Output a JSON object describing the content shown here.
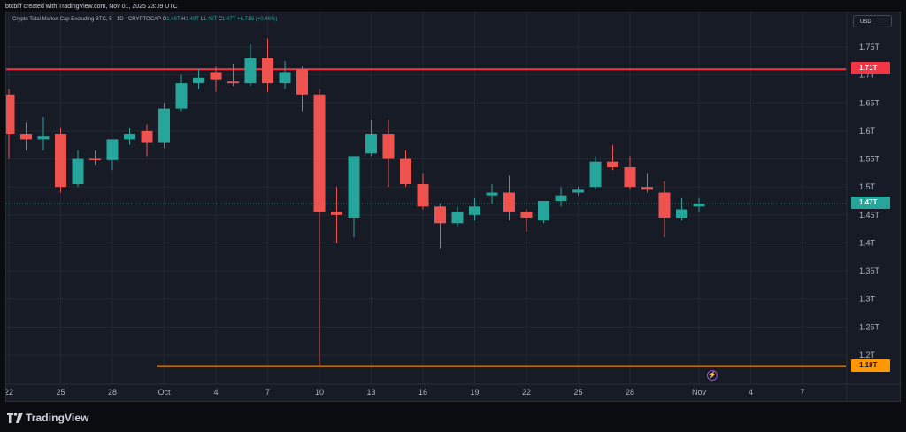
{
  "header": {
    "caption": "btcbiff created with TradingView.com, Nov 01, 2025 23:09 UTC"
  },
  "legend": {
    "title": "Crypto Total Market Cap Excluding BTC, 5 · 1D · CRYPTOCAP",
    "open_label": "O",
    "open": "1.46T",
    "high_label": "H",
    "high": "1.48T",
    "low_label": "L",
    "low": "1.45T",
    "close_label": "C",
    "close": "1.47T",
    "change": "+6.71B (+0.46%)"
  },
  "currency_button": "USD",
  "colors": {
    "up": "#26a69a",
    "down": "#ef5350",
    "resistance": "#f23645",
    "support": "#ff9800",
    "background": "#171b26",
    "grid": "#232733"
  },
  "price_tags": {
    "resistance": "1.71T",
    "current": "1.47T",
    "support": "1.18T"
  },
  "chart_data": {
    "type": "candlestick",
    "title": "Crypto Total Market Cap Excluding BTC, 5 · 1D · CRYPTOCAP",
    "y_unit": "T",
    "ylim": [
      1.17,
      1.78
    ],
    "y_ticks": [
      "1.75T",
      "1.7T",
      "1.65T",
      "1.6T",
      "1.55T",
      "1.5T",
      "1.45T",
      "1.4T",
      "1.35T",
      "1.3T",
      "1.25T",
      "1.2T"
    ],
    "y_tick_values": [
      1.75,
      1.7,
      1.65,
      1.6,
      1.55,
      1.5,
      1.45,
      1.4,
      1.35,
      1.3,
      1.25,
      1.2
    ],
    "x_range": [
      "2025-09-22",
      "2025-11-09"
    ],
    "x_ticks": [
      {
        "date": "2025-09-22",
        "label": "22"
      },
      {
        "date": "2025-09-25",
        "label": "25"
      },
      {
        "date": "2025-09-28",
        "label": "28"
      },
      {
        "date": "2025-10-01",
        "label": "Oct"
      },
      {
        "date": "2025-10-04",
        "label": "4"
      },
      {
        "date": "2025-10-07",
        "label": "7"
      },
      {
        "date": "2025-10-10",
        "label": "10"
      },
      {
        "date": "2025-10-13",
        "label": "13"
      },
      {
        "date": "2025-10-16",
        "label": "16"
      },
      {
        "date": "2025-10-19",
        "label": "19"
      },
      {
        "date": "2025-10-22",
        "label": "22"
      },
      {
        "date": "2025-10-25",
        "label": "25"
      },
      {
        "date": "2025-10-28",
        "label": "28"
      },
      {
        "date": "2025-11-01",
        "label": "Nov"
      },
      {
        "date": "2025-11-04",
        "label": "4"
      },
      {
        "date": "2025-11-07",
        "label": "7"
      }
    ],
    "candles": [
      {
        "date": "2025-09-22",
        "o": 1.665,
        "h": 1.675,
        "l": 1.55,
        "c": 1.595
      },
      {
        "date": "2025-09-23",
        "o": 1.595,
        "h": 1.615,
        "l": 1.565,
        "c": 1.585
      },
      {
        "date": "2025-09-24",
        "o": 1.585,
        "h": 1.625,
        "l": 1.565,
        "c": 1.59
      },
      {
        "date": "2025-09-25",
        "o": 1.595,
        "h": 1.605,
        "l": 1.49,
        "c": 1.5
      },
      {
        "date": "2025-09-26",
        "o": 1.505,
        "h": 1.565,
        "l": 1.5,
        "c": 1.55
      },
      {
        "date": "2025-09-27",
        "o": 1.55,
        "h": 1.565,
        "l": 1.54,
        "c": 1.548
      },
      {
        "date": "2025-09-28",
        "o": 1.548,
        "h": 1.585,
        "l": 1.53,
        "c": 1.585
      },
      {
        "date": "2025-09-29",
        "o": 1.585,
        "h": 1.605,
        "l": 1.575,
        "c": 1.595
      },
      {
        "date": "2025-09-30",
        "o": 1.6,
        "h": 1.612,
        "l": 1.555,
        "c": 1.58
      },
      {
        "date": "2025-10-01",
        "o": 1.58,
        "h": 1.65,
        "l": 1.57,
        "c": 1.64
      },
      {
        "date": "2025-10-02",
        "o": 1.64,
        "h": 1.7,
        "l": 1.635,
        "c": 1.685
      },
      {
        "date": "2025-10-03",
        "o": 1.685,
        "h": 1.71,
        "l": 1.675,
        "c": 1.695
      },
      {
        "date": "2025-10-04",
        "o": 1.705,
        "h": 1.715,
        "l": 1.67,
        "c": 1.692
      },
      {
        "date": "2025-10-05",
        "o": 1.688,
        "h": 1.72,
        "l": 1.68,
        "c": 1.685
      },
      {
        "date": "2025-10-06",
        "o": 1.685,
        "h": 1.755,
        "l": 1.68,
        "c": 1.73
      },
      {
        "date": "2025-10-07",
        "o": 1.73,
        "h": 1.765,
        "l": 1.67,
        "c": 1.685
      },
      {
        "date": "2025-10-08",
        "o": 1.685,
        "h": 1.725,
        "l": 1.675,
        "c": 1.705
      },
      {
        "date": "2025-10-09",
        "o": 1.71,
        "h": 1.715,
        "l": 1.635,
        "c": 1.665
      },
      {
        "date": "2025-10-10",
        "o": 1.665,
        "h": 1.675,
        "l": 1.18,
        "c": 1.455
      },
      {
        "date": "2025-10-11",
        "o": 1.455,
        "h": 1.5,
        "l": 1.4,
        "c": 1.45
      },
      {
        "date": "2025-10-12",
        "o": 1.445,
        "h": 1.555,
        "l": 1.41,
        "c": 1.555
      },
      {
        "date": "2025-10-13",
        "o": 1.56,
        "h": 1.62,
        "l": 1.555,
        "c": 1.595
      },
      {
        "date": "2025-10-14",
        "o": 1.595,
        "h": 1.62,
        "l": 1.5,
        "c": 1.55
      },
      {
        "date": "2025-10-15",
        "o": 1.55,
        "h": 1.565,
        "l": 1.5,
        "c": 1.505
      },
      {
        "date": "2025-10-16",
        "o": 1.505,
        "h": 1.525,
        "l": 1.46,
        "c": 1.465
      },
      {
        "date": "2025-10-17",
        "o": 1.465,
        "h": 1.47,
        "l": 1.39,
        "c": 1.435
      },
      {
        "date": "2025-10-18",
        "o": 1.435,
        "h": 1.465,
        "l": 1.43,
        "c": 1.455
      },
      {
        "date": "2025-10-19",
        "o": 1.45,
        "h": 1.48,
        "l": 1.44,
        "c": 1.465
      },
      {
        "date": "2025-10-20",
        "o": 1.485,
        "h": 1.505,
        "l": 1.47,
        "c": 1.49
      },
      {
        "date": "2025-10-21",
        "o": 1.49,
        "h": 1.52,
        "l": 1.44,
        "c": 1.455
      },
      {
        "date": "2025-10-22",
        "o": 1.455,
        "h": 1.46,
        "l": 1.42,
        "c": 1.445
      },
      {
        "date": "2025-10-23",
        "o": 1.44,
        "h": 1.475,
        "l": 1.435,
        "c": 1.475
      },
      {
        "date": "2025-10-24",
        "o": 1.475,
        "h": 1.5,
        "l": 1.465,
        "c": 1.485
      },
      {
        "date": "2025-10-25",
        "o": 1.49,
        "h": 1.5,
        "l": 1.485,
        "c": 1.495
      },
      {
        "date": "2025-10-26",
        "o": 1.5,
        "h": 1.555,
        "l": 1.495,
        "c": 1.545
      },
      {
        "date": "2025-10-27",
        "o": 1.545,
        "h": 1.575,
        "l": 1.53,
        "c": 1.535
      },
      {
        "date": "2025-10-28",
        "o": 1.535,
        "h": 1.555,
        "l": 1.495,
        "c": 1.5
      },
      {
        "date": "2025-10-29",
        "o": 1.5,
        "h": 1.525,
        "l": 1.49,
        "c": 1.495
      },
      {
        "date": "2025-10-30",
        "o": 1.49,
        "h": 1.51,
        "l": 1.41,
        "c": 1.445
      },
      {
        "date": "2025-10-31",
        "o": 1.445,
        "h": 1.48,
        "l": 1.44,
        "c": 1.46
      },
      {
        "date": "2025-11-01",
        "o": 1.465,
        "h": 1.48,
        "l": 1.455,
        "c": 1.47
      }
    ],
    "horizontal_lines": [
      {
        "value": 1.71,
        "label": "1.71T",
        "color": "#f23645",
        "from": "2025-09-22"
      },
      {
        "value": 1.18,
        "label": "1.18T",
        "color": "#ff9800",
        "from": "2025-10-01"
      }
    ],
    "last_price": {
      "value": 1.47,
      "label": "1.47T"
    },
    "grid": true
  },
  "watermark": "TradingView"
}
